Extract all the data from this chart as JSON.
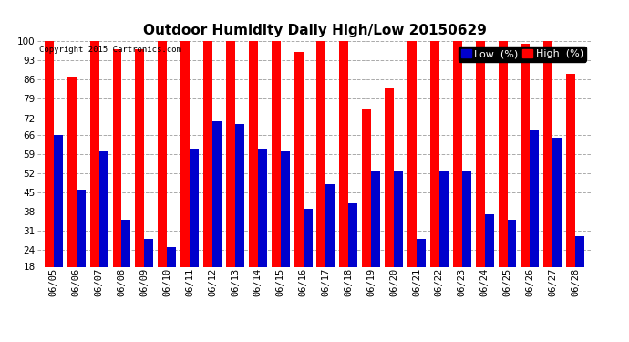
{
  "title": "Outdoor Humidity Daily High/Low 20150629",
  "copyright": "Copyright 2015 Cartronics.com",
  "categories": [
    "06/05",
    "06/06",
    "06/07",
    "06/08",
    "06/09",
    "06/10",
    "06/11",
    "06/12",
    "06/13",
    "06/14",
    "06/15",
    "06/16",
    "06/17",
    "06/18",
    "06/19",
    "06/20",
    "06/21",
    "06/22",
    "06/23",
    "06/24",
    "06/25",
    "06/26",
    "06/27",
    "06/28"
  ],
  "high_values": [
    100,
    87,
    100,
    97,
    97,
    100,
    100,
    100,
    100,
    100,
    100,
    96,
    100,
    100,
    75,
    83,
    100,
    100,
    100,
    100,
    100,
    99,
    100,
    88
  ],
  "low_values": [
    66,
    46,
    60,
    35,
    28,
    25,
    61,
    71,
    70,
    61,
    60,
    39,
    48,
    41,
    53,
    53,
    28,
    53,
    53,
    37,
    35,
    68,
    65,
    29
  ],
  "bar_width": 0.4,
  "high_color": "#FF0000",
  "low_color": "#0000CC",
  "bg_color": "#FFFFFF",
  "grid_color": "#AAAAAA",
  "ylim_min": 18,
  "ylim_max": 100,
  "yticks": [
    18,
    24,
    31,
    38,
    45,
    52,
    59,
    66,
    72,
    79,
    86,
    93,
    100
  ],
  "title_fontsize": 11,
  "tick_fontsize": 7.5,
  "legend_fontsize": 8
}
